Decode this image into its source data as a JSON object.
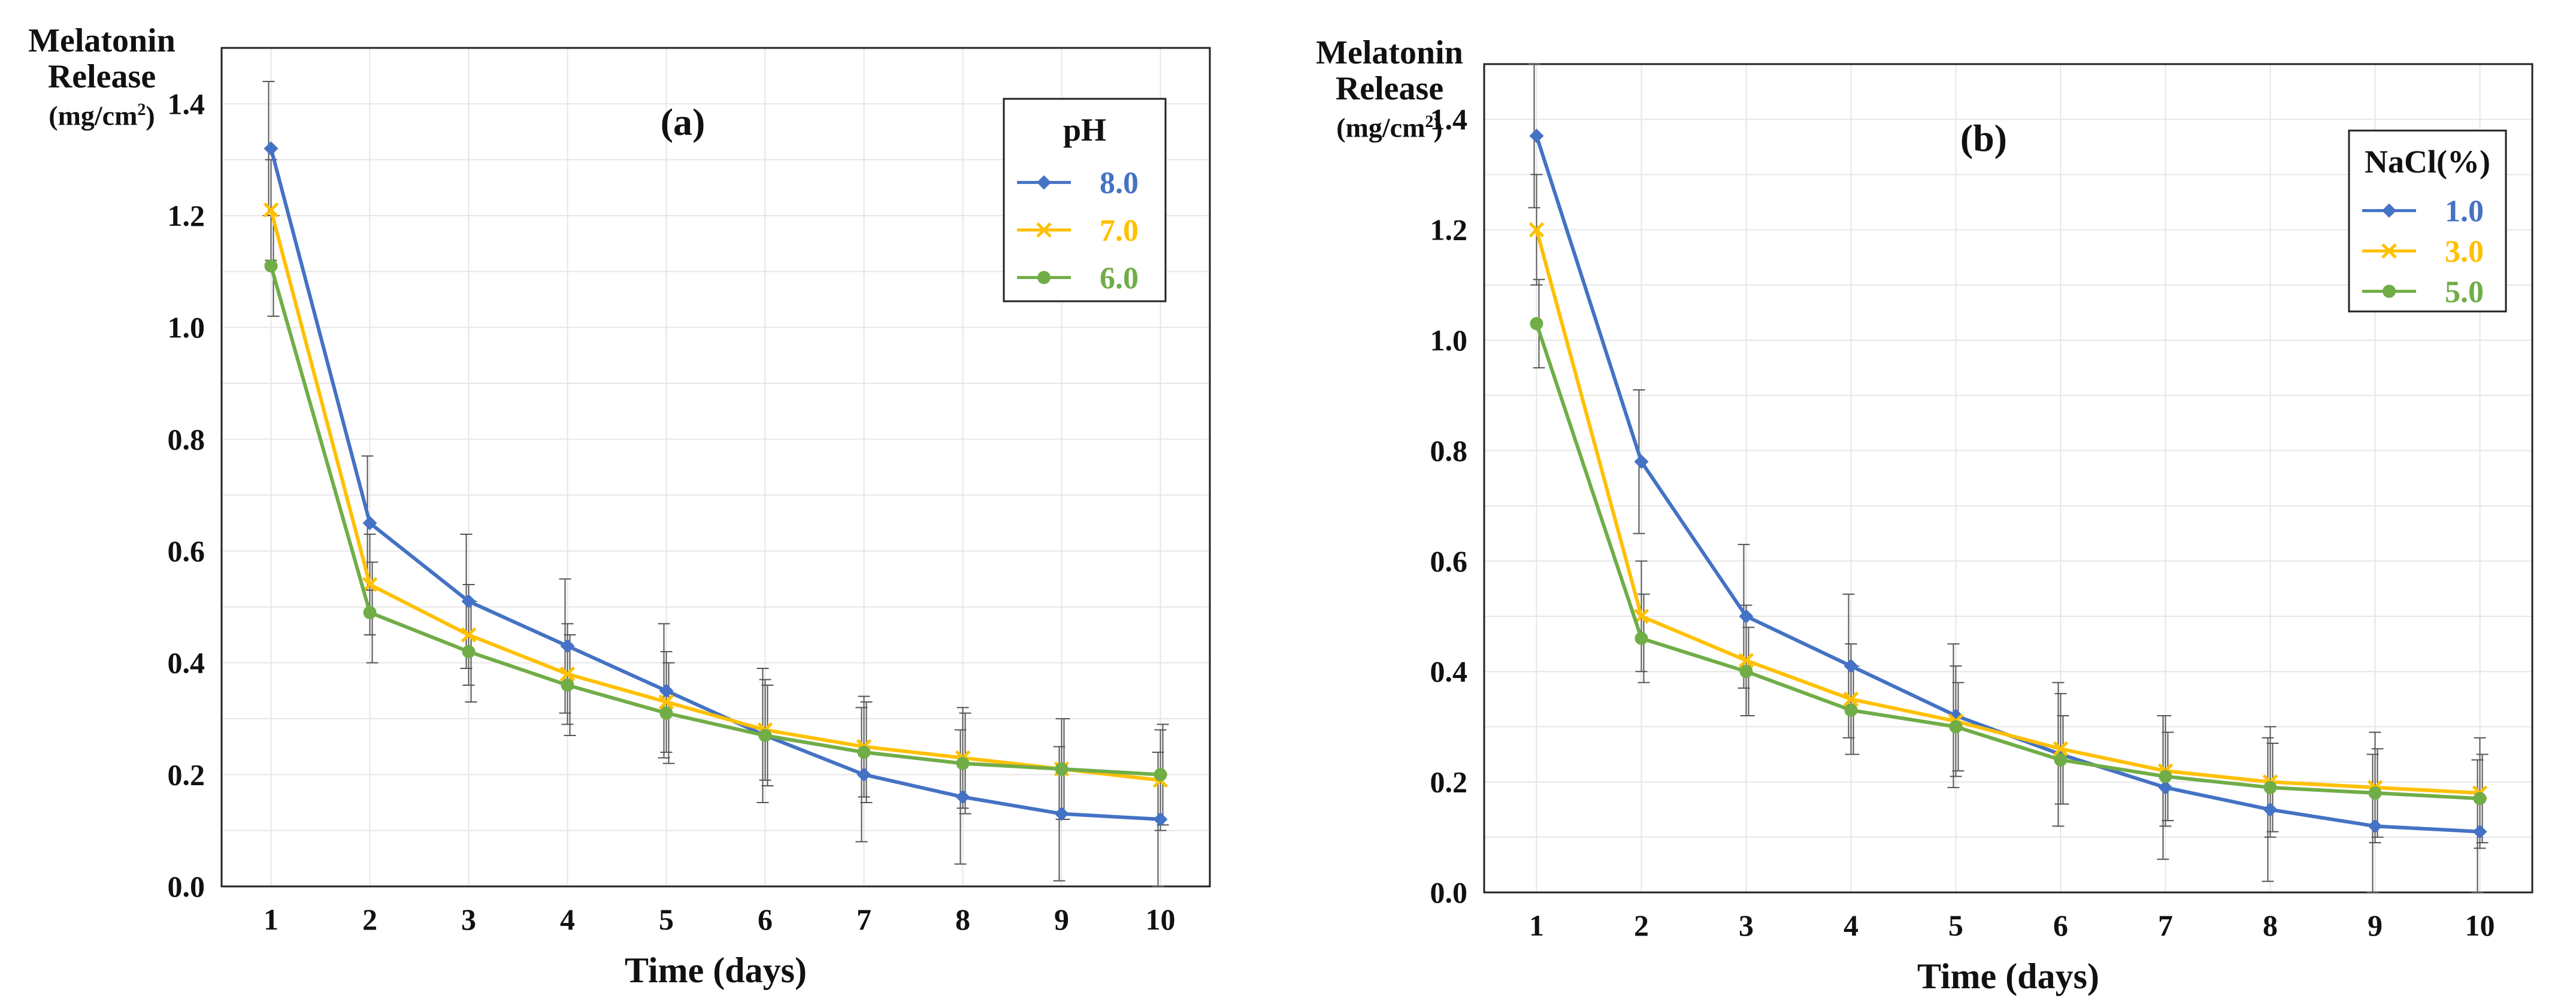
{
  "chart_data": [
    {
      "type": "line",
      "panel_label": "(a)",
      "title": "",
      "xlabel": "Time (days)",
      "ylabel": [
        "Melatonin",
        "Release"
      ],
      "ylabel_unit": "(mg/cm",
      "ylabel_unit_sup": "2",
      "ylabel_unit_close": ")",
      "x": [
        1,
        2,
        3,
        4,
        5,
        6,
        7,
        8,
        9,
        10
      ],
      "xlim": [
        0.5,
        10.5
      ],
      "ylim": [
        0,
        1.5
      ],
      "yticks": [
        "0.0",
        "0.2",
        "0.4",
        "0.6",
        "0.8",
        "1.0",
        "1.2",
        "1.4"
      ],
      "ytick_values": [
        0,
        0.2,
        0.4,
        0.6,
        0.8,
        1.0,
        1.2,
        1.4
      ],
      "grid": true,
      "legend_title": "pH",
      "legend_position": "top-right",
      "series": [
        {
          "name": "8.0",
          "color": "#4472C4",
          "marker": "diamond",
          "values": [
            1.32,
            0.65,
            0.51,
            0.43,
            0.35,
            0.27,
            0.2,
            0.16,
            0.13,
            0.12
          ],
          "errors": [
            0.12,
            0.12,
            0.12,
            0.12,
            0.12,
            0.12,
            0.12,
            0.12,
            0.12,
            0.12
          ]
        },
        {
          "name": "7.0",
          "color": "#FFC000",
          "marker": "x",
          "values": [
            1.21,
            0.54,
            0.45,
            0.38,
            0.33,
            0.28,
            0.25,
            0.23,
            0.21,
            0.19
          ],
          "errors": [
            0.09,
            0.09,
            0.09,
            0.09,
            0.09,
            0.09,
            0.09,
            0.09,
            0.09,
            0.09
          ]
        },
        {
          "name": "6.0",
          "color": "#70AD47",
          "marker": "circle",
          "values": [
            1.11,
            0.49,
            0.42,
            0.36,
            0.31,
            0.27,
            0.24,
            0.22,
            0.21,
            0.2
          ],
          "errors": [
            0.09,
            0.09,
            0.09,
            0.09,
            0.09,
            0.09,
            0.09,
            0.09,
            0.09,
            0.09
          ]
        }
      ]
    },
    {
      "type": "line",
      "panel_label": "(b)",
      "title": "",
      "xlabel": "Time (days)",
      "ylabel": [
        "Melatonin",
        "Release"
      ],
      "ylabel_unit": "(mg/cm",
      "ylabel_unit_sup": "2",
      "ylabel_unit_close": ")",
      "x": [
        1,
        2,
        3,
        4,
        5,
        6,
        7,
        8,
        9,
        10
      ],
      "xlim": [
        0.5,
        10.5
      ],
      "ylim": [
        0,
        1.5
      ],
      "yticks": [
        "0.0",
        "0.2",
        "0.4",
        "0.6",
        "0.8",
        "1.0",
        "1.2",
        "1.4"
      ],
      "ytick_values": [
        0,
        0.2,
        0.4,
        0.6,
        0.8,
        1.0,
        1.2,
        1.4
      ],
      "grid": true,
      "legend_title": "NaCl(%)",
      "legend_position": "top-right",
      "series": [
        {
          "name": "1.0",
          "color": "#4472C4",
          "marker": "diamond",
          "values": [
            1.37,
            0.78,
            0.5,
            0.41,
            0.32,
            0.25,
            0.19,
            0.15,
            0.12,
            0.11
          ],
          "errors": [
            0.13,
            0.13,
            0.13,
            0.13,
            0.13,
            0.13,
            0.13,
            0.13,
            0.13,
            0.13
          ]
        },
        {
          "name": "3.0",
          "color": "#FFC000",
          "marker": "x",
          "values": [
            1.2,
            0.5,
            0.42,
            0.35,
            0.31,
            0.26,
            0.22,
            0.2,
            0.19,
            0.18
          ],
          "errors": [
            0.1,
            0.1,
            0.1,
            0.1,
            0.1,
            0.1,
            0.1,
            0.1,
            0.1,
            0.1
          ]
        },
        {
          "name": "5.0",
          "color": "#70AD47",
          "marker": "circle",
          "values": [
            1.03,
            0.46,
            0.4,
            0.33,
            0.3,
            0.24,
            0.21,
            0.19,
            0.18,
            0.17
          ],
          "errors": [
            0.08,
            0.08,
            0.08,
            0.08,
            0.08,
            0.08,
            0.08,
            0.08,
            0.08,
            0.08
          ]
        }
      ]
    }
  ]
}
